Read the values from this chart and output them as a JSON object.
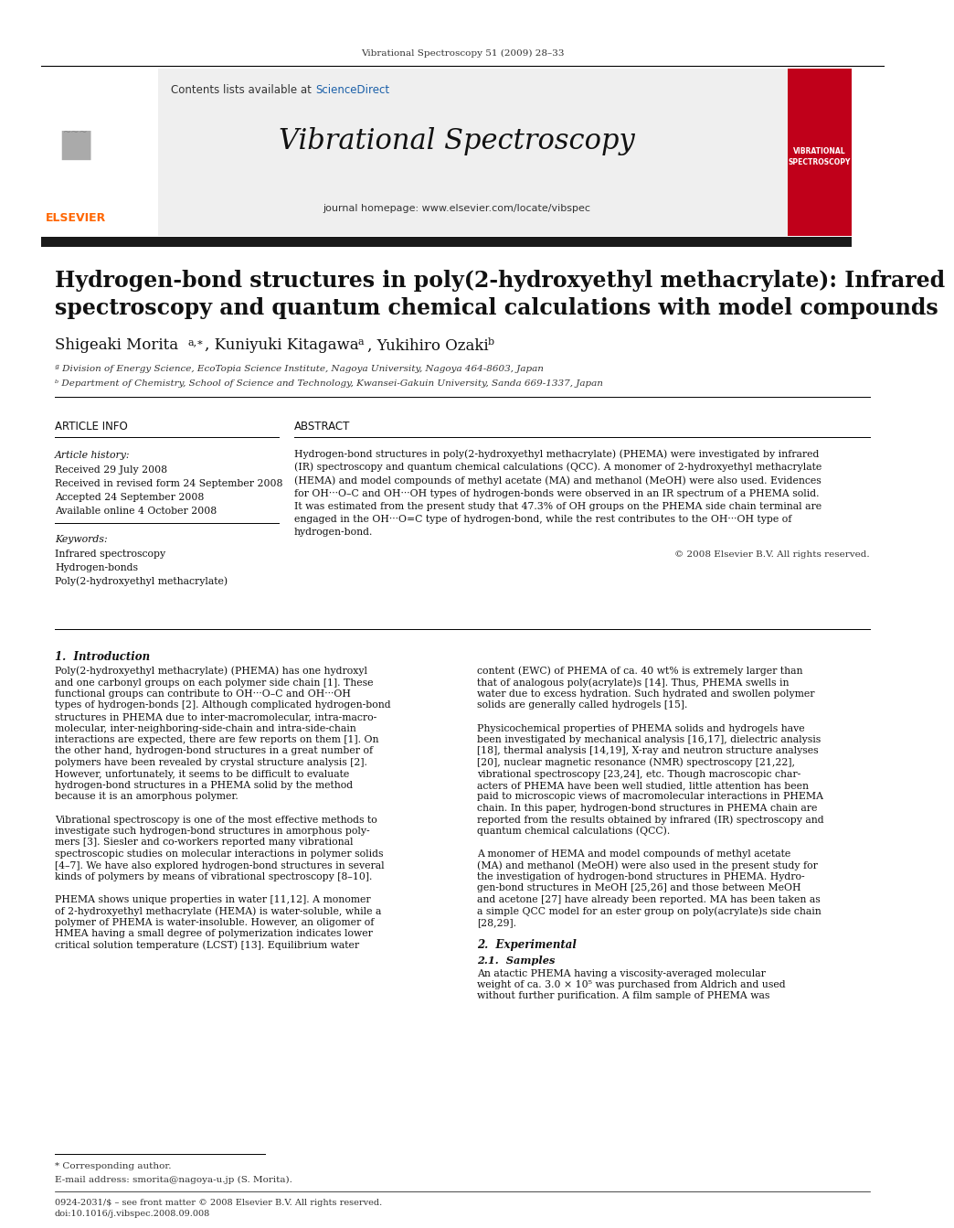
{
  "page_bg": "#ffffff",
  "top_journal_ref": "Vibrational Spectroscopy 51 (2009) 28–33",
  "header_contents": "Contents lists available at",
  "header_sciencedirect": "ScienceDirect",
  "header_journal_title": "Vibrational Spectroscopy",
  "header_homepage": "journal homepage: www.elsevier.com/locate/vibspec",
  "red_journal_bg": "#c0001a",
  "red_journal_text_line1": "VIBRATIONAL",
  "red_journal_text_line2": "SPECTROSCOPY",
  "paper_title_line1": "Hydrogen-bond structures in poly(2-hydroxyethyl methacrylate): Infrared",
  "paper_title_line2": "spectroscopy and quantum chemical calculations with model compounds",
  "affil_a": "ª Division of Energy Science, EcoTopia Science Institute, Nagoya University, Nagoya 464-8603, Japan",
  "affil_b": "ᵇ Department of Chemistry, School of Science and Technology, Kwansei-Gakuin University, Sanda 669-1337, Japan",
  "article_info_header": "ARTICLE INFO",
  "abstract_header": "ABSTRACT",
  "article_history_label": "Article history:",
  "received": "Received 29 July 2008",
  "received_revised": "Received in revised form 24 September 2008",
  "accepted": "Accepted 24 September 2008",
  "available": "Available online 4 October 2008",
  "keywords_label": "Keywords:",
  "keyword1": "Infrared spectroscopy",
  "keyword2": "Hydrogen-bonds",
  "keyword3": "Poly(2-hydroxyethyl methacrylate)",
  "copyright": "© 2008 Elsevier B.V. All rights reserved.",
  "section1_title": "1.  Introduction",
  "section2_title": "2.  Experimental",
  "section21_title": "2.1.  Samples",
  "footnote_star": "* Corresponding author.",
  "footnote_email": "E-mail address: smorita@nagoya-u.jp (S. Morita).",
  "footnote_issn": "0924-2031/$ – see front matter © 2008 Elsevier B.V. All rights reserved.",
  "footnote_doi": "doi:10.1016/j.vibspec.2008.09.008"
}
